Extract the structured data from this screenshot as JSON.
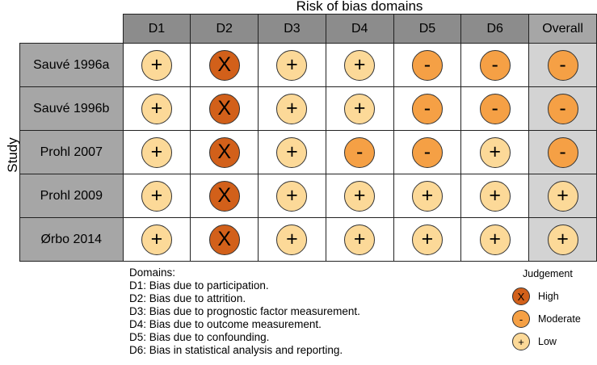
{
  "title": "Risk of bias domains",
  "ylabel": "Study",
  "domains": [
    "D1",
    "D2",
    "D3",
    "D4",
    "D5",
    "D6",
    "Overall"
  ],
  "symbols": {
    "High": "X",
    "Moderate": "-",
    "Low": "+"
  },
  "colors": {
    "High": "#d2601a",
    "Moderate": "#f5a045",
    "Low": "#fcd998"
  },
  "rows": [
    {
      "study": "Sauvé 1996a",
      "ratings": [
        "Low",
        "High",
        "Low",
        "Low",
        "Moderate",
        "Moderate",
        "Moderate"
      ]
    },
    {
      "study": "Sauvé 1996b",
      "ratings": [
        "Low",
        "High",
        "Low",
        "Low",
        "Moderate",
        "Moderate",
        "Moderate"
      ]
    },
    {
      "study": "Prohl 2007",
      "ratings": [
        "Low",
        "High",
        "Low",
        "Moderate",
        "Moderate",
        "Low",
        "Moderate"
      ]
    },
    {
      "study": "Prohl 2009",
      "ratings": [
        "Low",
        "High",
        "Low",
        "Low",
        "Low",
        "Low",
        "Low"
      ]
    },
    {
      "study": "Ørbo 2014",
      "ratings": [
        "Low",
        "High",
        "Low",
        "Low",
        "Low",
        "Low",
        "Low"
      ]
    }
  ],
  "domain_descriptions": {
    "heading": "Domains:",
    "items": [
      "D1: Bias due to participation.",
      "D2: Bias due to attrition.",
      "D3: Bias due to prognostic factor measurement.",
      "D4: Bias due to outcome measurement.",
      "D5: Bias due to confounding.",
      "D6: Bias in statistical analysis and reporting."
    ]
  },
  "legend": {
    "title": "Judgement",
    "items": [
      {
        "level": "High",
        "label": "High"
      },
      {
        "level": "Moderate",
        "label": "Moderate"
      },
      {
        "level": "Low",
        "label": "Low"
      }
    ]
  }
}
